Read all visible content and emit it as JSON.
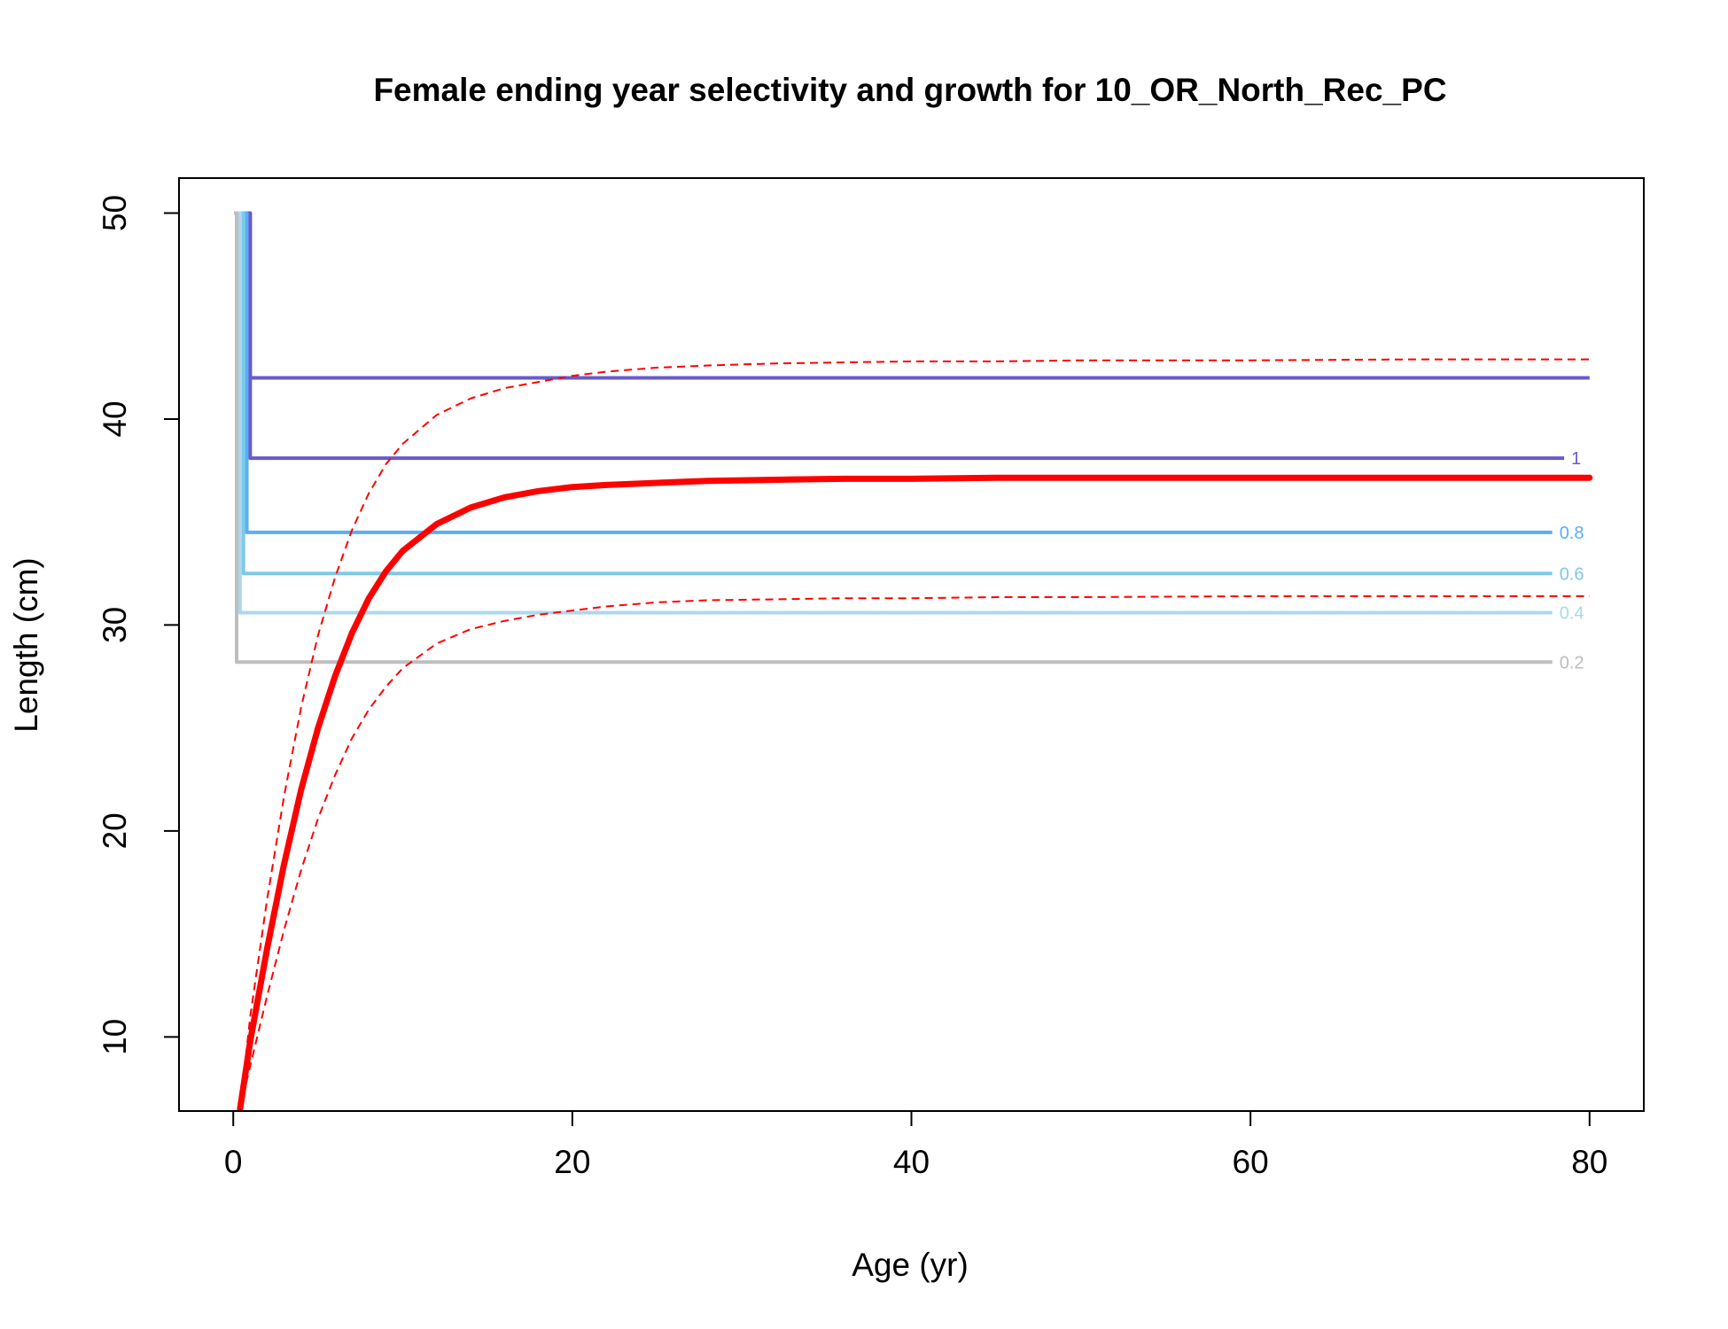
{
  "chart_data": {
    "type": "line",
    "title": "Female ending year selectivity and growth for 10_OR_North_Rec_PC",
    "xlabel": "Age (yr)",
    "ylabel": "Length (cm)",
    "xlim": [
      -3.2,
      83.2
    ],
    "ylim": [
      6.4,
      51.7
    ],
    "x_ticks": [
      0,
      20,
      40,
      60,
      80
    ],
    "y_ticks": [
      10,
      20,
      30,
      40,
      50
    ],
    "growth": {
      "color": "#ff0000",
      "mean": {
        "x": [
          0.4,
          1,
          2,
          3,
          4,
          5,
          6,
          7,
          8,
          9,
          10,
          12,
          14,
          16,
          18,
          20,
          22,
          25,
          28,
          32,
          36,
          40,
          45,
          50,
          60,
          70,
          80
        ],
        "y": [
          6.5,
          9.8,
          14.3,
          18.4,
          22.0,
          25.0,
          27.5,
          29.6,
          31.3,
          32.6,
          33.6,
          34.9,
          35.7,
          36.2,
          36.5,
          36.7,
          36.8,
          36.9,
          37.0,
          37.05,
          37.1,
          37.1,
          37.15,
          37.15,
          37.15,
          37.15,
          37.15
        ]
      },
      "upper": {
        "x": [
          0.4,
          1,
          2,
          3,
          4,
          5,
          6,
          7,
          8,
          9,
          10,
          12,
          14,
          16,
          18,
          20,
          22,
          25,
          28,
          32,
          36,
          40,
          45,
          50,
          60,
          70,
          80
        ],
        "y": [
          6.5,
          11.0,
          16.7,
          21.7,
          26.0,
          29.5,
          32.3,
          34.6,
          36.4,
          37.8,
          38.8,
          40.2,
          41.0,
          41.5,
          41.8,
          42.1,
          42.3,
          42.5,
          42.6,
          42.7,
          42.75,
          42.8,
          42.8,
          42.85,
          42.85,
          42.9,
          42.9
        ]
      },
      "lower": {
        "x": [
          0.4,
          1,
          2,
          3,
          4,
          5,
          6,
          7,
          8,
          9,
          10,
          12,
          14,
          16,
          18,
          20,
          22,
          25,
          28,
          32,
          36,
          40,
          45,
          50,
          60,
          70,
          80
        ],
        "y": [
          6.5,
          8.6,
          12.0,
          15.2,
          18.1,
          20.6,
          22.7,
          24.5,
          25.9,
          27.0,
          27.9,
          29.1,
          29.8,
          30.2,
          30.5,
          30.7,
          30.9,
          31.1,
          31.2,
          31.25,
          31.3,
          31.3,
          31.35,
          31.35,
          31.4,
          31.4,
          31.4
        ]
      }
    },
    "selectivity_contours": [
      {
        "label": "",
        "color": "#6a5acd",
        "y": 42.0,
        "x_end": 80.0,
        "x_vert": 1.0
      },
      {
        "label": "1",
        "color": "#6a5acd",
        "y": 38.1,
        "x_end": 78.5,
        "x_vert": 1.0
      },
      {
        "label": "0.8",
        "color": "#5aaef5",
        "y": 34.5,
        "x_end": 77.8,
        "x_vert": 0.8
      },
      {
        "label": "0.6",
        "color": "#7ec8ea",
        "y": 32.5,
        "x_end": 77.8,
        "x_vert": 0.6
      },
      {
        "label": "0.4",
        "color": "#acd8ec",
        "y": 30.6,
        "x_end": 77.8,
        "x_vert": 0.4
      },
      {
        "label": "0.2",
        "color": "#bebebe",
        "y": 28.2,
        "x_end": 77.8,
        "x_vert": 0.2
      }
    ]
  }
}
